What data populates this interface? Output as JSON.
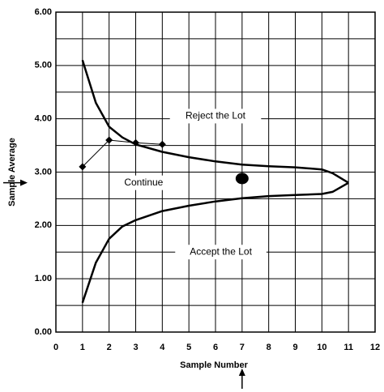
{
  "chart_data": {
    "type": "line",
    "title": "",
    "xlabel": "Sample Number",
    "ylabel": "Sample Average",
    "xlim": [
      0,
      12
    ],
    "ylim": [
      0,
      6
    ],
    "x_ticks": [
      "0",
      "1",
      "2",
      "3",
      "4",
      "5",
      "6",
      "7",
      "8",
      "9",
      "10",
      "11",
      "12"
    ],
    "y_ticks": [
      "0.00",
      "1.00",
      "2.00",
      "3.00",
      "4.00",
      "5.00",
      "6.00"
    ],
    "grid": true,
    "series": [
      {
        "role": "upper-boundary",
        "x": [
          1,
          1.5,
          2,
          2.5,
          3,
          4,
          5,
          6,
          7,
          8,
          9,
          10,
          10.4,
          11
        ],
        "y": [
          5.1,
          4.3,
          3.85,
          3.65,
          3.52,
          3.38,
          3.28,
          3.2,
          3.14,
          3.11,
          3.09,
          3.05,
          2.98,
          2.8
        ]
      },
      {
        "role": "lower-boundary",
        "x": [
          1,
          1.5,
          2,
          2.5,
          3,
          4,
          5,
          6,
          7,
          8,
          9,
          10,
          10.4,
          11
        ],
        "y": [
          0.55,
          1.3,
          1.75,
          1.98,
          2.1,
          2.27,
          2.37,
          2.45,
          2.51,
          2.55,
          2.57,
          2.59,
          2.63,
          2.8
        ]
      },
      {
        "role": "sample-averages",
        "x": [
          1,
          2,
          3,
          4
        ],
        "y": [
          3.1,
          3.6,
          3.55,
          3.52
        ]
      }
    ],
    "highlight_point": {
      "x": 7,
      "y": 2.88
    },
    "regions": [
      {
        "label": "Reject the Lot",
        "x": 6.0,
        "y": 4.05
      },
      {
        "label": "Continue",
        "x": 3.3,
        "y": 2.8
      },
      {
        "label": "Accept the Lot",
        "x": 6.2,
        "y": 1.5
      }
    ],
    "markers": {
      "y_arrow_at": 2.8,
      "x_arrow_at": 7
    },
    "colors": {
      "line": "#000000",
      "grid": "#000000",
      "background": "#ffffff"
    }
  }
}
